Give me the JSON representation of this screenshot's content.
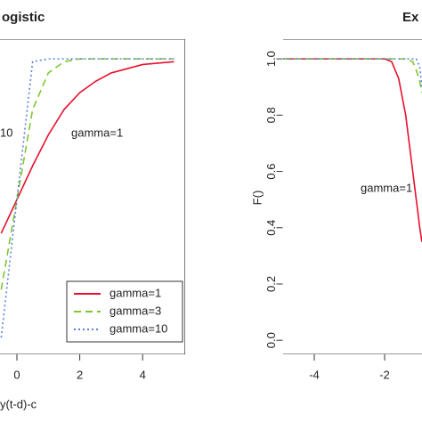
{
  "chart_data": [
    {
      "type": "line",
      "title": "ogistic",
      "x_label": "y(t-d)-c",
      "x": [
        -0.5,
        0,
        0.5,
        1,
        1.5,
        2,
        2.5,
        3,
        4,
        5
      ],
      "series": [
        {
          "name": "gamma=1",
          "color": "#e8102e",
          "linestyle": "solid",
          "values": [
            0.38,
            0.5,
            0.62,
            0.73,
            0.82,
            0.88,
            0.92,
            0.95,
            0.98,
            0.99
          ]
        },
        {
          "name": "gamma=3",
          "color": "#7ec72d",
          "linestyle": "dashed",
          "values": [
            0.18,
            0.5,
            0.82,
            0.95,
            0.99,
            1.0,
            1.0,
            1.0,
            1.0,
            1.0
          ]
        },
        {
          "name": "gamma=10",
          "color": "#5a7fe0",
          "linestyle": "dotted",
          "values": [
            0.01,
            0.5,
            0.99,
            1.0,
            1.0,
            1.0,
            1.0,
            1.0,
            1.0,
            1.0
          ]
        }
      ],
      "annotations": [
        "10",
        "gamma=1"
      ],
      "xlim": [
        -5.35,
        5.35
      ],
      "xticks": [
        0,
        2,
        4
      ],
      "ylim": [
        -0.05,
        1.07
      ],
      "legend": "bottom-right"
    },
    {
      "type": "line",
      "title": "Ex",
      "y_label": "F()",
      "x": [
        -4.9,
        -2,
        -1.8,
        -1.6,
        -1.4,
        -1.2,
        -1.1,
        -1.0,
        -0.94
      ],
      "series": [
        {
          "color": "#e8102e",
          "linestyle": "solid",
          "values": [
            1,
            1,
            0.99,
            0.93,
            0.8,
            0.6,
            0.5,
            0.4,
            0.35
          ]
        },
        {
          "color": "#7ec72d",
          "linestyle": "dashed",
          "values": [
            1,
            1,
            1,
            1,
            1,
            0.99,
            0.96,
            0.92,
            0.88
          ]
        },
        {
          "color": "#5a7fe0",
          "linestyle": "dotted",
          "values": [
            1,
            1,
            1,
            1,
            1,
            1,
            1,
            0.97,
            0.9
          ]
        }
      ],
      "annotations": [
        "gamma=1"
      ],
      "xlim": [
        -4.9,
        4.9
      ],
      "xticks": [
        -4,
        -2
      ],
      "ylim": [
        -0.05,
        1.07
      ],
      "yticks": [
        {
          "value": 0,
          "label": "0.0"
        },
        0.2,
        0.4,
        0.6,
        0.8,
        {
          "value": 1,
          "label": "1.0"
        }
      ]
    }
  ]
}
